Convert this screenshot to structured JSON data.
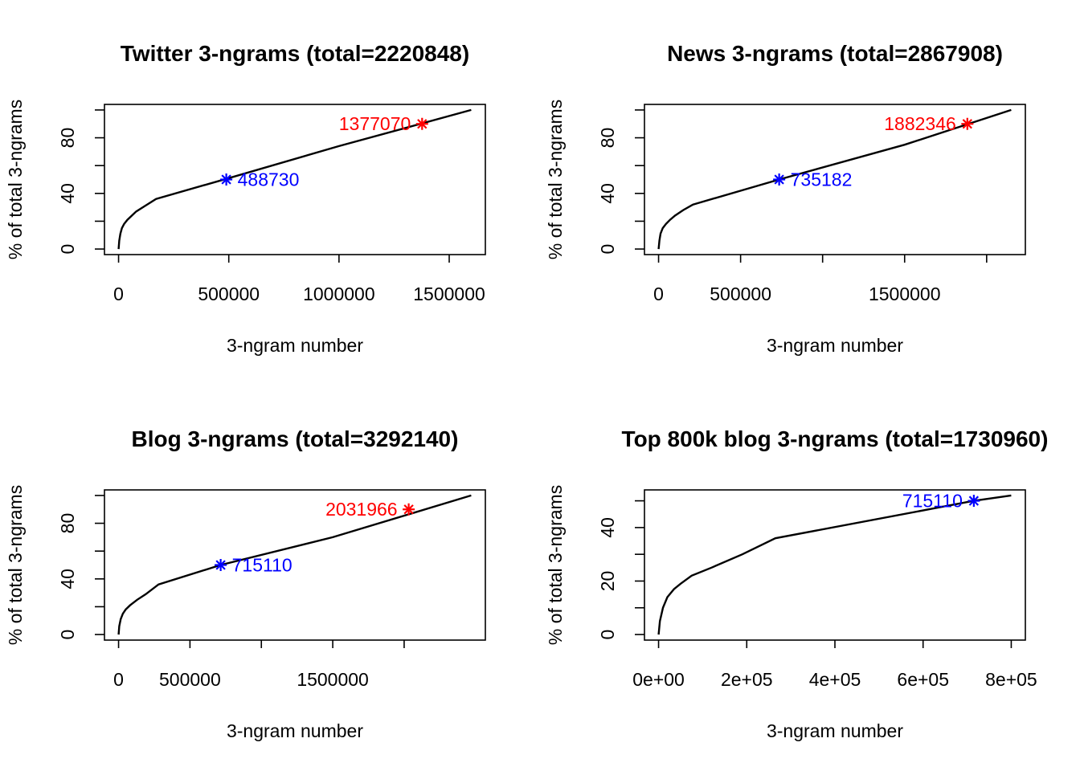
{
  "chart_data": [
    {
      "type": "line",
      "title": "Twitter 3-ngrams (total=2220848)",
      "xlabel": "3-ngram number",
      "ylabel": "% of total 3-ngrams",
      "xlim": [
        0,
        1600000
      ],
      "ylim": [
        0,
        100
      ],
      "xticks": [
        0,
        500000,
        1000000,
        1500000
      ],
      "xtick_labels": [
        "0",
        "500000",
        "1000000",
        "1500000"
      ],
      "yticks": [
        0,
        20,
        40,
        60,
        80,
        100
      ],
      "ytick_labels": [
        "0",
        "",
        "40",
        "",
        "80",
        ""
      ],
      "x": [
        0,
        3000,
        8000,
        15000,
        25000,
        40000,
        60000,
        80000,
        120000,
        170000,
        500000,
        1000000,
        1600000
      ],
      "y": [
        0,
        6,
        11,
        15,
        18,
        21,
        24,
        27,
        31,
        36,
        51,
        74,
        100
      ],
      "annotations": [
        {
          "x": 488730,
          "y": 50,
          "label": "488730",
          "color": "#0000ff",
          "side": "right"
        },
        {
          "x": 1377070,
          "y": 90,
          "label": "1377070",
          "color": "#ff0000",
          "side": "left"
        }
      ]
    },
    {
      "type": "line",
      "title": "News 3-ngrams (total=2867908)",
      "xlabel": "3-ngram number",
      "ylabel": "% of total 3-ngrams",
      "xlim": [
        0,
        2150000
      ],
      "ylim": [
        0,
        100
      ],
      "xticks": [
        0,
        500000,
        1000000,
        1500000,
        2000000
      ],
      "xtick_labels": [
        "0",
        "500000",
        "",
        "1500000",
        ""
      ],
      "yticks": [
        0,
        20,
        40,
        60,
        80,
        100
      ],
      "ytick_labels": [
        "0",
        "",
        "40",
        "",
        "80",
        ""
      ],
      "x": [
        0,
        5000,
        12000,
        25000,
        45000,
        70000,
        100000,
        150000,
        210000,
        735182,
        1500000,
        2150000
      ],
      "y": [
        0,
        6,
        11,
        15,
        18,
        21,
        24,
        28,
        32,
        50,
        75,
        100
      ],
      "annotations": [
        {
          "x": 735182,
          "y": 50,
          "label": "735182",
          "color": "#0000ff",
          "side": "right"
        },
        {
          "x": 1882346,
          "y": 90,
          "label": "1882346",
          "color": "#ff0000",
          "side": "left"
        }
      ]
    },
    {
      "type": "line",
      "title": "Blog 3-ngrams (total=3292140)",
      "xlabel": "3-ngram number",
      "ylabel": "% of total 3-ngrams",
      "xlim": [
        0,
        2470000
      ],
      "ylim": [
        0,
        100
      ],
      "xticks": [
        0,
        500000,
        1000000,
        1500000,
        2000000
      ],
      "xtick_labels": [
        "0",
        "500000",
        "",
        "1500000",
        ""
      ],
      "yticks": [
        0,
        20,
        40,
        60,
        80,
        100
      ],
      "ytick_labels": [
        "0",
        "",
        "40",
        "",
        "80",
        ""
      ],
      "x": [
        0,
        5000,
        15000,
        30000,
        50000,
        80000,
        130000,
        190000,
        280000,
        715110,
        1500000,
        2470000
      ],
      "y": [
        0,
        6,
        11,
        15,
        18,
        21,
        25,
        29,
        36,
        50,
        70,
        100
      ],
      "annotations": [
        {
          "x": 715110,
          "y": 50,
          "label": "715110",
          "color": "#0000ff",
          "side": "right"
        },
        {
          "x": 2031966,
          "y": 90,
          "label": "2031966",
          "color": "#ff0000",
          "side": "left"
        }
      ]
    },
    {
      "type": "line",
      "title": "Top 800k blog 3-ngrams (total=1730960)",
      "xlabel": "3-ngram number",
      "ylabel": "% of total 3-ngrams",
      "xlim": [
        0,
        800000
      ],
      "ylim": [
        0,
        52
      ],
      "xticks": [
        0,
        200000,
        400000,
        600000,
        800000
      ],
      "xtick_labels": [
        "0e+00",
        "2e+05",
        "4e+05",
        "6e+05",
        "8e+05"
      ],
      "yticks": [
        0,
        10,
        20,
        30,
        40,
        50
      ],
      "ytick_labels": [
        "0",
        "",
        "20",
        "",
        "40",
        ""
      ],
      "x": [
        0,
        3000,
        10000,
        20000,
        35000,
        50000,
        75000,
        120000,
        190000,
        265000,
        715110,
        800000
      ],
      "y": [
        0,
        5,
        10,
        14,
        17,
        19,
        22,
        25,
        30,
        36,
        50,
        52
      ],
      "annotations": [
        {
          "x": 715110,
          "y": 50,
          "label": "715110",
          "color": "#0000ff",
          "side": "left"
        }
      ]
    }
  ]
}
